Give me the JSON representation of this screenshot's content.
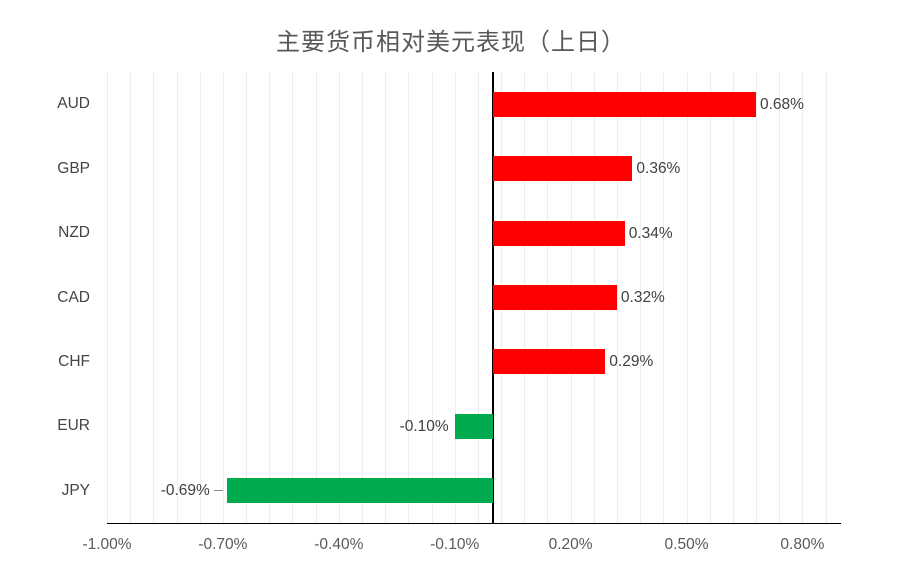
{
  "title": "主要货币相对美元表现（上日）",
  "chart_data": {
    "type": "bar",
    "orientation": "horizontal",
    "title": "主要货币相对美元表现（上日）",
    "categories": [
      "AUD",
      "GBP",
      "NZD",
      "CAD",
      "CHF",
      "EUR",
      "JPY"
    ],
    "values": [
      0.68,
      0.36,
      0.34,
      0.32,
      0.29,
      -0.1,
      -0.69
    ],
    "data_labels": [
      "0.68%",
      "0.36%",
      "0.34%",
      "0.32%",
      "0.29%",
      "-0.10%",
      "-0.69%"
    ],
    "label_leader_lines": [
      false,
      false,
      false,
      false,
      false,
      false,
      true
    ],
    "x_tick_labels": [
      "-1.00%",
      "-0.70%",
      "-0.40%",
      "-0.10%",
      "0.20%",
      "0.50%",
      "0.80%"
    ],
    "x_tick_values": [
      -1.0,
      -0.7,
      -0.4,
      -0.1,
      0.2,
      0.5,
      0.8
    ],
    "xlim": [
      -1.0,
      0.9
    ],
    "minor_grid_step": 0.06,
    "grid": true,
    "legend": false,
    "colors": {
      "positive_bar": "#FF0000",
      "negative_bar": "#00AB4E",
      "gridline": "#ECECEC",
      "axis_line": "#000000",
      "data_label_text": "#404040",
      "axis_label_text": "#595959",
      "title_text": "#595959"
    }
  }
}
